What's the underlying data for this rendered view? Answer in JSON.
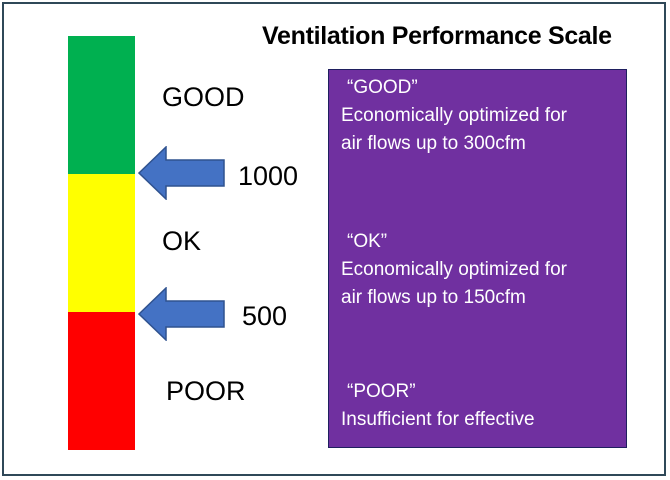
{
  "title": "Ventilation Performance Scale",
  "colors": {
    "good": "#00b050",
    "ok": "#ffff00",
    "poor": "#ff0000",
    "arrow": "#4472c4",
    "info_box": "#7030a0"
  },
  "levels": [
    {
      "label": "GOOD"
    },
    {
      "label": "OK"
    },
    {
      "label": "POOR"
    }
  ],
  "thresholds": [
    {
      "label": "1000"
    },
    {
      "label": "500"
    }
  ],
  "descriptions": [
    {
      "heading": "“GOOD”",
      "line1": "Economically optimized for",
      "line2": "air flows up to 300cfm"
    },
    {
      "heading": "“OK”",
      "line1": "Economically optimized for",
      "line2": "air flows up to 150cfm"
    },
    {
      "heading": "“POOR”",
      "line1": "Insufficient for effective",
      "line2": ""
    }
  ]
}
